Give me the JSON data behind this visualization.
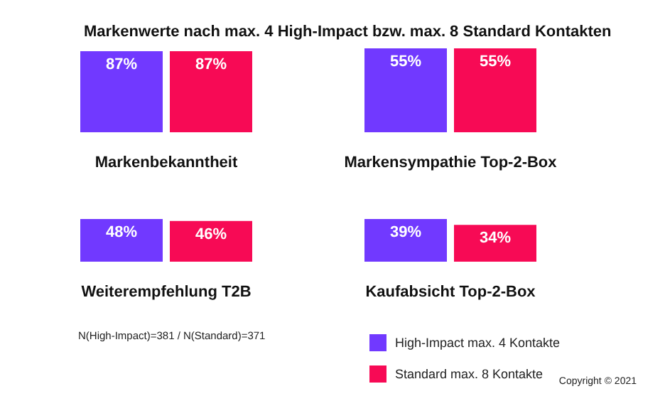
{
  "chart_data": [
    {
      "type": "bar",
      "title": "Markenwerte nach max. 4 High-Impact bzw. max. 8 Standard Kontakten",
      "xlabel": "Markenbekanntheit",
      "categories": [
        null
      ],
      "series": [
        {
          "color": "#7139ff",
          "values": [
            87
          ],
          "value_labels": [
            "87%"
          ]
        },
        {
          "color": "#f70a55",
          "values": [
            87
          ],
          "value_labels": [
            "87%"
          ]
        }
      ]
    },
    {
      "type": "bar",
      "xlabel": "Markensympathie Top-2-Box",
      "categories": [
        null
      ],
      "series": [
        {
          "color": "#7139ff",
          "values": [
            55
          ],
          "value_labels": [
            "55%"
          ]
        },
        {
          "color": "#f70a55",
          "values": [
            55
          ],
          "value_labels": [
            "55%"
          ]
        }
      ]
    },
    {
      "type": "bar",
      "xlabel": "Weiterempfehlung T2B",
      "categories": [
        null
      ],
      "annotations": [
        "N(High-Impact)=381 / N(Standard)=371"
      ],
      "series": [
        {
          "color": "#7139ff",
          "values": [
            48
          ],
          "value_labels": [
            "48%"
          ]
        },
        {
          "color": "#f70a55",
          "values": [
            46
          ],
          "value_labels": [
            "46%"
          ]
        }
      ]
    },
    {
      "type": "bar",
      "xlabel": "Kaufabsicht Top-2-Box",
      "categories": [
        null
      ],
      "legend": "bottom right",
      "annotations": [
        "Copyright © 2021"
      ],
      "series": [
        {
          "name": "High-Impact max. 4 Kontakte",
          "color": "#7139ff",
          "values": [
            39
          ],
          "value_labels": [
            "39%"
          ]
        },
        {
          "name": "Standard max. 8 Kontakte",
          "color": "#f70a55",
          "values": [
            34
          ],
          "value_labels": [
            "34%"
          ]
        }
      ]
    }
  ]
}
